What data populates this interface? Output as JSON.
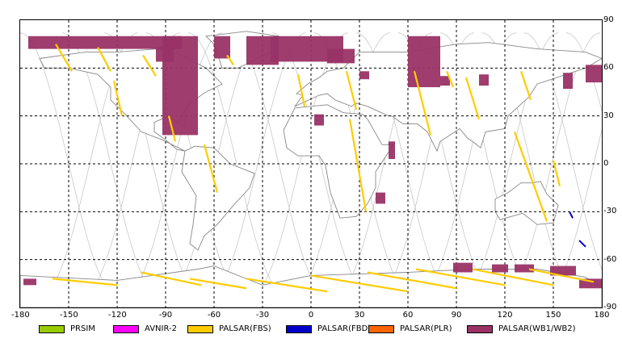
{
  "axes": {
    "x_ticks": [
      "-180",
      "-150",
      "-120",
      "-90",
      "-60",
      "-30",
      "0",
      "30",
      "60",
      "90",
      "120",
      "150",
      "180"
    ],
    "y_ticks": [
      "90",
      "60",
      "30",
      "0",
      "-30",
      "-60",
      "-90"
    ]
  },
  "legend": [
    {
      "label": "PRSIM",
      "color": "#99cc00"
    },
    {
      "label": "AVNIR-2",
      "color": "#ff00ff"
    },
    {
      "label": "PALSAR(FBS)",
      "color": "#ffcc00"
    },
    {
      "label": "PALSAR(FBD)",
      "color": "#0000cc"
    },
    {
      "label": "PALSAR(PLR)",
      "color": "#ff6600"
    },
    {
      "label": "PALSAR(WB1/WB2)",
      "color": "#993366"
    }
  ],
  "map": {
    "lon_range": [
      -180,
      180
    ],
    "lat_range": [
      -90,
      90
    ],
    "grid_step_deg": 30,
    "grid_style": "dashed",
    "orbit_track_color": "#c8c8c8",
    "coastline_color": "#888888",
    "wb_swaths": [
      {
        "lon": [
          -175,
          -80
        ],
        "lat": [
          72,
          80
        ]
      },
      {
        "lon": [
          -96,
          -85
        ],
        "lat": [
          64,
          73
        ]
      },
      {
        "lon": [
          -92,
          -70
        ],
        "lat": [
          18,
          80
        ]
      },
      {
        "lon": [
          -60,
          -50
        ],
        "lat": [
          66,
          80
        ]
      },
      {
        "lon": [
          -40,
          -20
        ],
        "lat": [
          62,
          80
        ]
      },
      {
        "lon": [
          -25,
          20
        ],
        "lat": [
          64,
          80
        ]
      },
      {
        "lon": [
          10,
          27
        ],
        "lat": [
          63,
          72
        ]
      },
      {
        "lon": [
          30,
          36
        ],
        "lat": [
          53,
          58
        ]
      },
      {
        "lon": [
          2,
          8
        ],
        "lat": [
          24,
          31
        ]
      },
      {
        "lon": [
          48,
          52
        ],
        "lat": [
          3,
          14
        ]
      },
      {
        "lon": [
          40,
          46
        ],
        "lat": [
          -25,
          -18
        ]
      },
      {
        "lon": [
          60,
          80
        ],
        "lat": [
          48,
          80
        ]
      },
      {
        "lon": [
          80,
          86
        ],
        "lat": [
          49,
          55
        ]
      },
      {
        "lon": [
          104,
          110
        ],
        "lat": [
          49,
          56
        ]
      },
      {
        "lon": [
          156,
          162
        ],
        "lat": [
          47,
          57
        ]
      },
      {
        "lon": [
          170,
          180
        ],
        "lat": [
          51,
          62
        ]
      },
      {
        "lon": [
          -178,
          -170
        ],
        "lat": [
          -76,
          -72
        ]
      },
      {
        "lon": [
          88,
          100
        ],
        "lat": [
          -68,
          -62
        ]
      },
      {
        "lon": [
          112,
          122
        ],
        "lat": [
          -68,
          -63
        ]
      },
      {
        "lon": [
          126,
          138
        ],
        "lat": [
          -68,
          -63
        ]
      },
      {
        "lon": [
          148,
          164
        ],
        "lat": [
          -70,
          -64
        ]
      },
      {
        "lon": [
          166,
          182
        ],
        "lat": [
          -78,
          -72
        ]
      }
    ],
    "fbs_segments": [
      {
        "from": [
          -158,
          75
        ],
        "to": [
          -148,
          58
        ]
      },
      {
        "from": [
          -132,
          73
        ],
        "to": [
          -124,
          58
        ]
      },
      {
        "from": [
          -104,
          68
        ],
        "to": [
          -96,
          55
        ]
      },
      {
        "from": [
          -122,
          52
        ],
        "to": [
          -117,
          30
        ]
      },
      {
        "from": [
          -88,
          30
        ],
        "to": [
          -84,
          14
        ]
      },
      {
        "from": [
          -66,
          12
        ],
        "to": [
          -58,
          -18
        ]
      },
      {
        "from": [
          -52,
          68
        ],
        "to": [
          -48,
          62
        ]
      },
      {
        "from": [
          -8,
          56
        ],
        "to": [
          -4,
          36
        ]
      },
      {
        "from": [
          22,
          58
        ],
        "to": [
          28,
          34
        ]
      },
      {
        "from": [
          24,
          28
        ],
        "to": [
          34,
          -30
        ]
      },
      {
        "from": [
          64,
          58
        ],
        "to": [
          74,
          18
        ]
      },
      {
        "from": [
          84,
          58
        ],
        "to": [
          88,
          48
        ]
      },
      {
        "from": [
          96,
          54
        ],
        "to": [
          104,
          28
        ]
      },
      {
        "from": [
          130,
          58
        ],
        "to": [
          136,
          40
        ]
      },
      {
        "from": [
          126,
          20
        ],
        "to": [
          146,
          -36
        ]
      },
      {
        "from": [
          150,
          2
        ],
        "to": [
          154,
          -14
        ]
      },
      {
        "from": [
          -160,
          -72
        ],
        "to": [
          -120,
          -76
        ]
      },
      {
        "from": [
          -105,
          -68
        ],
        "to": [
          -68,
          -76
        ]
      },
      {
        "from": [
          -75,
          -72
        ],
        "to": [
          -40,
          -78
        ]
      },
      {
        "from": [
          -40,
          -72
        ],
        "to": [
          10,
          -80
        ]
      },
      {
        "from": [
          0,
          -70
        ],
        "to": [
          60,
          -80
        ]
      },
      {
        "from": [
          35,
          -68
        ],
        "to": [
          90,
          -78
        ]
      },
      {
        "from": [
          65,
          -66
        ],
        "to": [
          120,
          -76
        ]
      },
      {
        "from": [
          100,
          -66
        ],
        "to": [
          150,
          -76
        ]
      },
      {
        "from": [
          135,
          -66
        ],
        "to": [
          175,
          -74
        ]
      }
    ],
    "fbd_segments": [
      {
        "from": [
          160,
          -30
        ],
        "to": [
          162,
          -34
        ]
      },
      {
        "from": [
          166,
          -48
        ],
        "to": [
          170,
          -52
        ]
      }
    ]
  }
}
